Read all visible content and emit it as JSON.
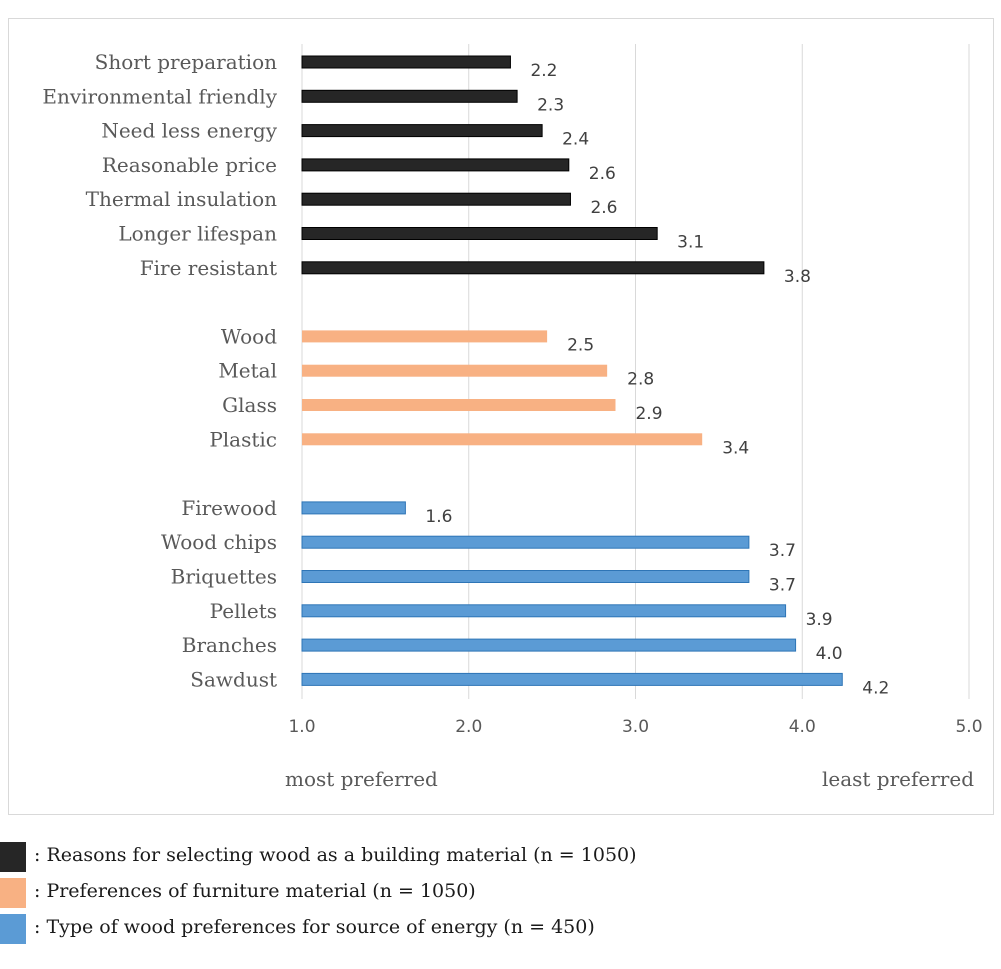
{
  "chart_data": {
    "type": "bar",
    "orientation": "horizontal",
    "title": "",
    "xlabel_left": "most preferred",
    "xlabel_right": "least preferred",
    "xlim": [
      1.0,
      5.0
    ],
    "x_ticks": [
      "1.0",
      "2.0",
      "3.0",
      "4.0",
      "5.0"
    ],
    "grid": "vertical",
    "groups": [
      {
        "name": "Reasons for selecting wood as a building material (n = 1050)",
        "color": "#262626",
        "categories": [
          "Short preparation",
          "Environmental friendly",
          "Need less energy",
          "Reasonable price",
          "Thermal insulation",
          "Longer lifespan",
          "Fire resistant"
        ],
        "values": [
          2.25,
          2.29,
          2.44,
          2.6,
          2.61,
          3.13,
          3.77
        ],
        "labels": [
          "2.2",
          "2.3",
          "2.4",
          "2.6",
          "2.6",
          "3.1",
          "3.8"
        ]
      },
      {
        "name": "Preferences of furniture material (n = 1050)",
        "color": "#f8b183",
        "categories": [
          "Wood",
          "Metal",
          "Glass",
          "Plastic"
        ],
        "values": [
          2.47,
          2.83,
          2.88,
          3.4
        ],
        "labels": [
          "2.5",
          "2.8",
          "2.9",
          "3.4"
        ]
      },
      {
        "name": "Type of wood preferences for source of energy (n = 450)",
        "color": "#5b9bd5",
        "categories": [
          "Firewood",
          "Wood chips",
          "Briquettes",
          "Pellets",
          "Branches",
          "Sawdust"
        ],
        "values": [
          1.62,
          3.68,
          3.68,
          3.9,
          3.96,
          4.24
        ],
        "labels": [
          "1.6",
          "3.7",
          "3.7",
          "3.9",
          "4.0",
          "4.2"
        ]
      }
    ]
  },
  "legend": [
    {
      "text": ": Reasons for selecting wood as a building material (n = 1050)",
      "color": "#262626"
    },
    {
      "text": ": Preferences of furniture material (n = 1050)",
      "color": "#f8b183"
    },
    {
      "text": ": Type of wood preferences for source of energy (n = 450)",
      "color": "#5b9bd5"
    }
  ]
}
